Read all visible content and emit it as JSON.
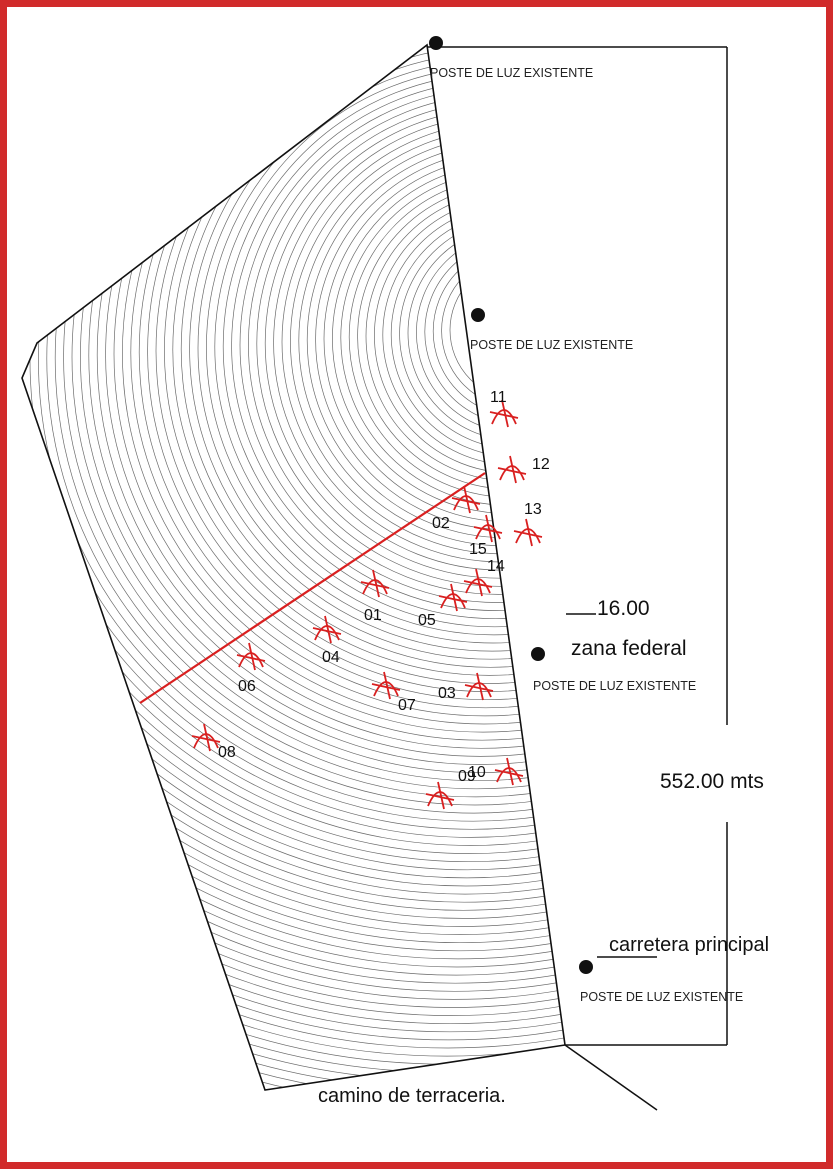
{
  "colors": {
    "frame": "#d12b2b",
    "marker": "#d92020",
    "line": "#111111",
    "contour": "#6b6b6b"
  },
  "poles": [
    {
      "label": "POSTE DE LUZ EXISTENTE"
    },
    {
      "label": "POSTE DE LUZ EXISTENTE"
    },
    {
      "label": "POSTE DE LUZ EXISTENTE"
    },
    {
      "label": "POSTE DE LUZ EXISTENTE"
    }
  ],
  "points": [
    "01",
    "02",
    "03",
    "04",
    "05",
    "06",
    "07",
    "08",
    "09",
    "10",
    "11",
    "12",
    "13",
    "14",
    "15"
  ],
  "dimensions": {
    "width_value": "16.00",
    "length_value": "552.00 mts"
  },
  "labels": {
    "federal_zone": "zana federal",
    "main_road": "carretera principal",
    "dirt_road": "camino de terraceria."
  },
  "icons": {
    "pole": "filled-circle",
    "survey_point": "red-cross"
  }
}
